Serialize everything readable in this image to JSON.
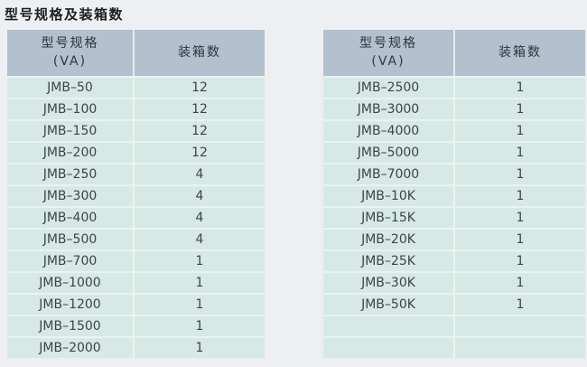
{
  "page": {
    "title": "型号规格及装箱数"
  },
  "colors": {
    "page_bg": "#edeff2",
    "title_text": "#1b1d1f",
    "header_bg": "#b3c0ce",
    "header_text": "#30363e",
    "header_divider": "#e6eaf0",
    "row_bg": "#d6e9e5",
    "row_divider": "#e9f4f1",
    "cell_text": "#3e4449"
  },
  "tables": [
    {
      "name": "spec-table-left",
      "columns": [
        {
          "lines": [
            "型号规格",
            "(VA)"
          ]
        },
        {
          "lines": [
            "装箱数"
          ]
        }
      ],
      "rows": [
        {
          "model": "JMB–50",
          "qty": "12"
        },
        {
          "model": "JMB–100",
          "qty": "12"
        },
        {
          "model": "JMB–150",
          "qty": "12"
        },
        {
          "model": "JMB–200",
          "qty": "12"
        },
        {
          "model": "JMB–250",
          "qty": "4"
        },
        {
          "model": "JMB–300",
          "qty": "4"
        },
        {
          "model": "JMB–400",
          "qty": "4"
        },
        {
          "model": "JMB–500",
          "qty": "4"
        },
        {
          "model": "JMB–700",
          "qty": "1"
        },
        {
          "model": "JMB–1000",
          "qty": "1"
        },
        {
          "model": "JMB–1200",
          "qty": "1"
        },
        {
          "model": "JMB–1500",
          "qty": "1"
        },
        {
          "model": "JMB–2000",
          "qty": "1"
        }
      ]
    },
    {
      "name": "spec-table-right",
      "columns": [
        {
          "lines": [
            "型号规格",
            "(VA)"
          ]
        },
        {
          "lines": [
            "装箱数"
          ]
        }
      ],
      "rows": [
        {
          "model": "JMB–2500",
          "qty": "1"
        },
        {
          "model": "JMB–3000",
          "qty": "1"
        },
        {
          "model": "JMB–4000",
          "qty": "1"
        },
        {
          "model": "JMB–5000",
          "qty": "1"
        },
        {
          "model": "JMB–7000",
          "qty": "1"
        },
        {
          "model": "JMB–10K",
          "qty": "1"
        },
        {
          "model": "JMB–15K",
          "qty": "1"
        },
        {
          "model": "JMB–20K",
          "qty": "1"
        },
        {
          "model": "JMB–25K",
          "qty": "1"
        },
        {
          "model": "JMB–30K",
          "qty": "1"
        },
        {
          "model": "JMB–50K",
          "qty": "1"
        },
        {
          "model": "",
          "qty": ""
        },
        {
          "model": "",
          "qty": ""
        }
      ]
    }
  ]
}
